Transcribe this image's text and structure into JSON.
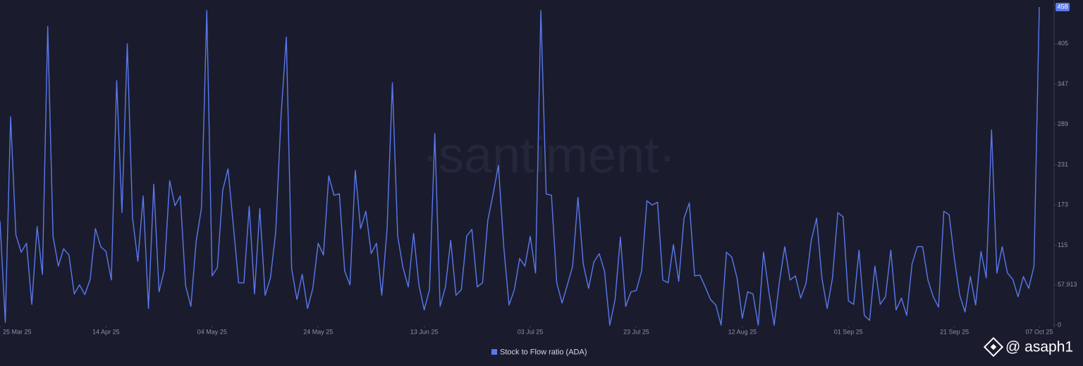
{
  "chart_data": {
    "type": "line",
    "watermark": "·santiment·",
    "attribution": "@ asaph1",
    "x": [
      "2025-03-25",
      "2025-03-26",
      "2025-03-27",
      "2025-03-28",
      "2025-03-29",
      "2025-03-30",
      "2025-03-31",
      "2025-04-01",
      "2025-04-02",
      "2025-04-03",
      "2025-04-04",
      "2025-04-05",
      "2025-04-06",
      "2025-04-07",
      "2025-04-08",
      "2025-04-09",
      "2025-04-10",
      "2025-04-11",
      "2025-04-12",
      "2025-04-13",
      "2025-04-14",
      "2025-04-15",
      "2025-04-16",
      "2025-04-17",
      "2025-04-18",
      "2025-04-19",
      "2025-04-20",
      "2025-04-21",
      "2025-04-22",
      "2025-04-23",
      "2025-04-24",
      "2025-04-25",
      "2025-04-26",
      "2025-04-27",
      "2025-04-28",
      "2025-04-29",
      "2025-04-30",
      "2025-05-01",
      "2025-05-02",
      "2025-05-03",
      "2025-05-04",
      "2025-05-05",
      "2025-05-06",
      "2025-05-07",
      "2025-05-08",
      "2025-05-09",
      "2025-05-10",
      "2025-05-11",
      "2025-05-12",
      "2025-05-13",
      "2025-05-14",
      "2025-05-15",
      "2025-05-16",
      "2025-05-17",
      "2025-05-18",
      "2025-05-19",
      "2025-05-20",
      "2025-05-21",
      "2025-05-22",
      "2025-05-23",
      "2025-05-24",
      "2025-05-25",
      "2025-05-26",
      "2025-05-27",
      "2025-05-28",
      "2025-05-29",
      "2025-05-30",
      "2025-05-31",
      "2025-06-01",
      "2025-06-02",
      "2025-06-03",
      "2025-06-04",
      "2025-06-05",
      "2025-06-06",
      "2025-06-07",
      "2025-06-08",
      "2025-06-09",
      "2025-06-10",
      "2025-06-11",
      "2025-06-12",
      "2025-06-13",
      "2025-06-14",
      "2025-06-15",
      "2025-06-16",
      "2025-06-17",
      "2025-06-18",
      "2025-06-19",
      "2025-06-20",
      "2025-06-21",
      "2025-06-22",
      "2025-06-23",
      "2025-06-24",
      "2025-06-25",
      "2025-06-26",
      "2025-06-27",
      "2025-06-28",
      "2025-06-29",
      "2025-06-30",
      "2025-07-01",
      "2025-07-02",
      "2025-07-03",
      "2025-07-04",
      "2025-07-05",
      "2025-07-06",
      "2025-07-07",
      "2025-07-08",
      "2025-07-09",
      "2025-07-10",
      "2025-07-11",
      "2025-07-12",
      "2025-07-13",
      "2025-07-14",
      "2025-07-15",
      "2025-07-16",
      "2025-07-17",
      "2025-07-18",
      "2025-07-19",
      "2025-07-20",
      "2025-07-21",
      "2025-07-22",
      "2025-07-23",
      "2025-07-24",
      "2025-07-25",
      "2025-07-26",
      "2025-07-27",
      "2025-07-28",
      "2025-07-29",
      "2025-07-30",
      "2025-07-31",
      "2025-08-01",
      "2025-08-02",
      "2025-08-03",
      "2025-08-04",
      "2025-08-05",
      "2025-08-06",
      "2025-08-07",
      "2025-08-08",
      "2025-08-09",
      "2025-08-10",
      "2025-08-11",
      "2025-08-12",
      "2025-08-13",
      "2025-08-14",
      "2025-08-15",
      "2025-08-16",
      "2025-08-17",
      "2025-08-18",
      "2025-08-19",
      "2025-08-20",
      "2025-08-21",
      "2025-08-22",
      "2025-08-23",
      "2025-08-24",
      "2025-08-25",
      "2025-08-26",
      "2025-08-27",
      "2025-08-28",
      "2025-08-29",
      "2025-08-30",
      "2025-08-31",
      "2025-09-01",
      "2025-09-02",
      "2025-09-03",
      "2025-09-04",
      "2025-09-05",
      "2025-09-06",
      "2025-09-07",
      "2025-09-08",
      "2025-09-09",
      "2025-09-10",
      "2025-09-11",
      "2025-09-12",
      "2025-09-13",
      "2025-09-14",
      "2025-09-15",
      "2025-09-16",
      "2025-09-17",
      "2025-09-18",
      "2025-09-19",
      "2025-09-20",
      "2025-09-21",
      "2025-09-22",
      "2025-09-23",
      "2025-09-24",
      "2025-09-25",
      "2025-09-26",
      "2025-09-27",
      "2025-09-28",
      "2025-09-29",
      "2025-09-30",
      "2025-10-01",
      "2025-10-02",
      "2025-10-03",
      "2025-10-04",
      "2025-10-05",
      "2025-10-06",
      "2025-10-07"
    ],
    "series": [
      {
        "name": "Stock to Flow ratio (ADA)",
        "color": "#5a78ee",
        "values": [
          150,
          4,
          300,
          130,
          105,
          118,
          30,
          142,
          73,
          430,
          128,
          85,
          110,
          101,
          45,
          58,
          44,
          66,
          139,
          113,
          106,
          65,
          352,
          162,
          405,
          154,
          92,
          186,
          24,
          203,
          48,
          80,
          208,
          172,
          186,
          57,
          27,
          121,
          169,
          453,
          71,
          83,
          194,
          225,
          144,
          61,
          61,
          171,
          45,
          168,
          43,
          68,
          134,
          301,
          415,
          81,
          37,
          73,
          24,
          53,
          118,
          101,
          215,
          187,
          189,
          78,
          58,
          223,
          139,
          164,
          103,
          118,
          43,
          139,
          349,
          128,
          83,
          55,
          132,
          58,
          22,
          51,
          276,
          27,
          55,
          122,
          43,
          51,
          128,
          138,
          55,
          61,
          151,
          189,
          230,
          113,
          29,
          51,
          96,
          85,
          128,
          75,
          453,
          189,
          187,
          61,
          32,
          58,
          85,
          184,
          88,
          53,
          91,
          103,
          78,
          0,
          37,
          127,
          27,
          48,
          50,
          78,
          179,
          173,
          177,
          65,
          61,
          116,
          63,
          154,
          176,
          71,
          72,
          55,
          37,
          29,
          0,
          105,
          98,
          68,
          10,
          48,
          45,
          0,
          105,
          48,
          0,
          63,
          113,
          65,
          71,
          39,
          60,
          122,
          154,
          68,
          24,
          68,
          162,
          156,
          35,
          30,
          108,
          14,
          7,
          85,
          30,
          41,
          108,
          22,
          39,
          14,
          88,
          113,
          113,
          65,
          41,
          26,
          164,
          159,
          95,
          43,
          19,
          70,
          29,
          106,
          68,
          281,
          75,
          113,
          75,
          66,
          41,
          70,
          53,
          85,
          458
        ]
      }
    ],
    "xticks": [
      {
        "value": "2025-03-25",
        "label": "25 Mar 25"
      },
      {
        "value": "2025-04-14",
        "label": "14 Apr 25"
      },
      {
        "value": "2025-05-04",
        "label": "04 May 25"
      },
      {
        "value": "2025-05-24",
        "label": "24 May 25"
      },
      {
        "value": "2025-06-13",
        "label": "13 Jun 25"
      },
      {
        "value": "2025-07-03",
        "label": "03 Jul 25"
      },
      {
        "value": "2025-07-23",
        "label": "23 Jul 25"
      },
      {
        "value": "2025-08-12",
        "label": "12 Aug 25"
      },
      {
        "value": "2025-09-01",
        "label": "01 Sep 25"
      },
      {
        "value": "2025-09-21",
        "label": "21 Sep 25"
      },
      {
        "value": "2025-10-07",
        "label": "07 Oct 25"
      }
    ],
    "ylim": [
      0,
      458
    ],
    "yticks": [
      0,
      57.913,
      115,
      173,
      231,
      289,
      347,
      405
    ],
    "grid": false,
    "legend": "bottom"
  }
}
